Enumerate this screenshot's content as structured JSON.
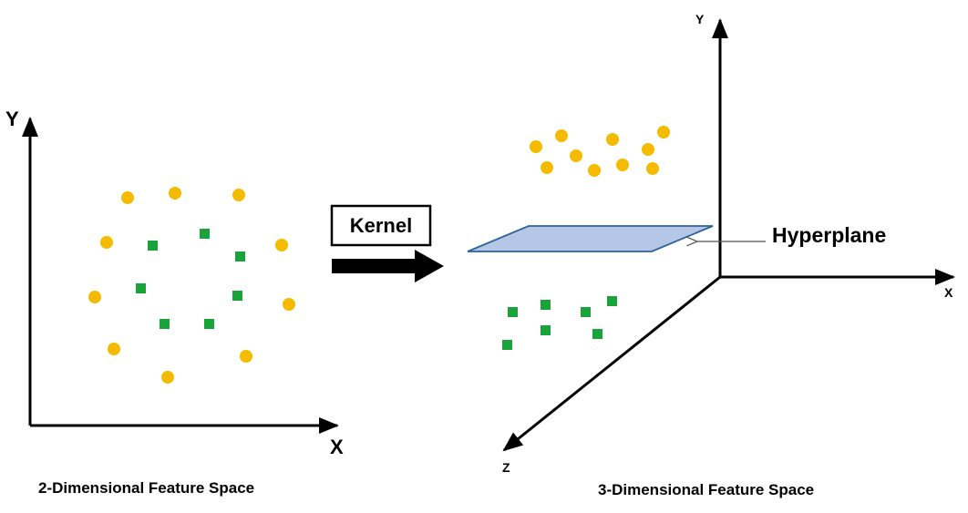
{
  "left_panel": {
    "y_label": "Y",
    "x_label": "X",
    "caption": "2-Dimensional Feature Space"
  },
  "kernel": {
    "label": "Kernel"
  },
  "right_panel": {
    "y_label": "Y",
    "x_label": "X",
    "z_label": "Z",
    "hyperplane_label": "Hyperplane",
    "caption": "3-Dimensional Feature Space"
  },
  "colors": {
    "circle": "#f5bb00",
    "square": "#1aa33a",
    "plane_fill": "#b4c7e7",
    "plane_stroke": "#2e6299",
    "axis": "#000000"
  }
}
